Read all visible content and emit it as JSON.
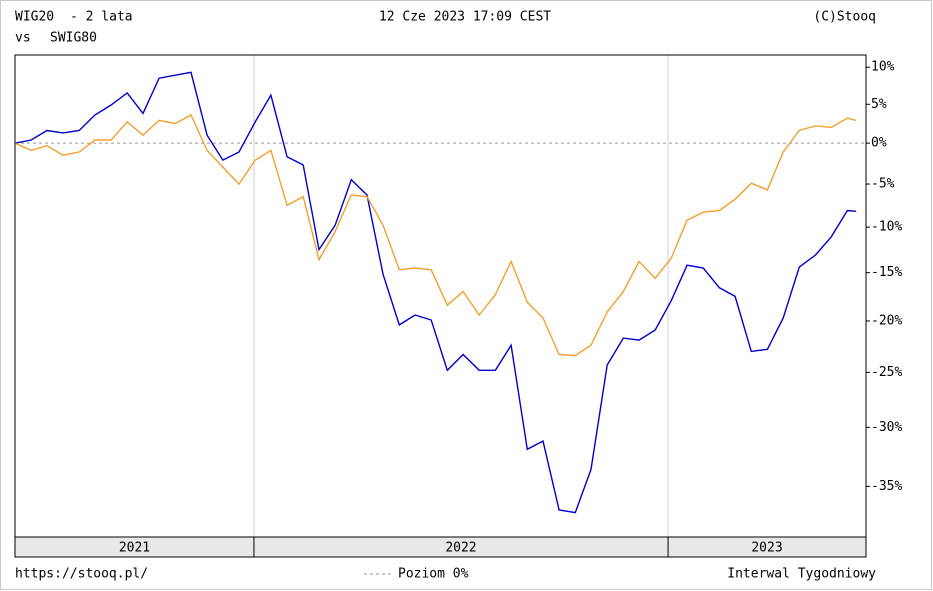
{
  "chart_data": {
    "type": "line",
    "title": "- 2 lata",
    "subtitle": "vs",
    "timestamp": "12 Cze 2023 17:09 CEST",
    "source": "(C)Stooq",
    "url": "https://stooq.pl/",
    "interval": "Interwal Tygodniowy",
    "reference_line": {
      "value": 0,
      "label": "Poziom 0%",
      "color": "#999999"
    },
    "log_scale": true,
    "x": [
      2021.423,
      2021.462,
      2021.5,
      2021.539,
      2021.578,
      2021.616,
      2021.655,
      2021.694,
      2021.732,
      2021.771,
      2021.81,
      2021.848,
      2021.887,
      2021.925,
      2021.964,
      2022.003,
      2022.041,
      2022.08,
      2022.119,
      2022.157,
      2022.196,
      2022.235,
      2022.273,
      2022.312,
      2022.351,
      2022.389,
      2022.428,
      2022.467,
      2022.505,
      2022.544,
      2022.583,
      2022.621,
      2022.66,
      2022.698,
      2022.737,
      2022.776,
      2022.814,
      2022.853,
      2022.892,
      2022.93,
      2022.969,
      2023.008,
      2023.046,
      2023.085,
      2023.124,
      2023.162,
      2023.201,
      2023.24,
      2023.278,
      2023.317,
      2023.356,
      2023.394,
      2023.433,
      2023.454
    ],
    "series": [
      {
        "name": "WIG20",
        "color": "#0000cc",
        "values": [
          0,
          0.4,
          1.6,
          1.3,
          1.6,
          3.6,
          4.9,
          6.5,
          3.8,
          8.5,
          8.9,
          9.3,
          1.0,
          -2.1,
          -1.1,
          2.7,
          6.2,
          -1.7,
          -2.7,
          -12.5,
          -9.8,
          -4.5,
          -6.3,
          -15.2,
          -20.4,
          -19.4,
          -19.9,
          -24.8,
          -23.3,
          -24.8,
          -24.8,
          -22.4,
          -31.9,
          -31.2,
          -36.9,
          -37.1,
          -33.6,
          -24.3,
          -21.7,
          -21.9,
          -20.9,
          -17.9,
          -14.2,
          -14.5,
          -16.6,
          -17.5,
          -23.0,
          -22.8,
          -19.7,
          -14.4,
          -13.1,
          -11.1,
          -8.1,
          -8.2
        ]
      },
      {
        "name": "SWIG80",
        "color": "#f0a030",
        "values": [
          0,
          -0.9,
          -0.3,
          -1.5,
          -1.1,
          0.4,
          0.4,
          2.7,
          1.0,
          2.9,
          2.5,
          3.6,
          -0.9,
          -3.0,
          -5.0,
          -2.1,
          -0.9,
          -7.5,
          -6.5,
          -13.6,
          -10.5,
          -6.3,
          -6.5,
          -9.8,
          -14.7,
          -14.5,
          -14.7,
          -18.4,
          -17.0,
          -19.4,
          -17.3,
          -13.8,
          -18.1,
          -19.7,
          -23.3,
          -23.4,
          -22.4,
          -19.1,
          -17.0,
          -13.8,
          -15.6,
          -13.4,
          -9.2,
          -8.3,
          -8.1,
          -6.8,
          -4.9,
          -5.7,
          -1.1,
          1.6,
          2.2,
          2.0,
          3.2,
          2.9
        ]
      }
    ],
    "xlim": [
      2021.423,
      2023.478
    ],
    "xticks": [
      2022,
      2023
    ],
    "year_labels": [
      "2021",
      "2022",
      "2023"
    ],
    "ylim": [
      -39,
      11.7
    ],
    "yticks": [
      {
        "value": 10,
        "label": "10%"
      },
      {
        "value": 5,
        "label": "5%"
      },
      {
        "value": 0,
        "label": "0%"
      },
      {
        "value": -5,
        "label": "-5%"
      },
      {
        "value": -10,
        "label": "-10%"
      },
      {
        "value": -15,
        "label": "-15%"
      },
      {
        "value": -20,
        "label": "-20%"
      },
      {
        "value": -25,
        "label": "-25%"
      },
      {
        "value": -30,
        "label": "-30%"
      },
      {
        "value": -35,
        "label": "-35%"
      }
    ],
    "grid": true
  }
}
